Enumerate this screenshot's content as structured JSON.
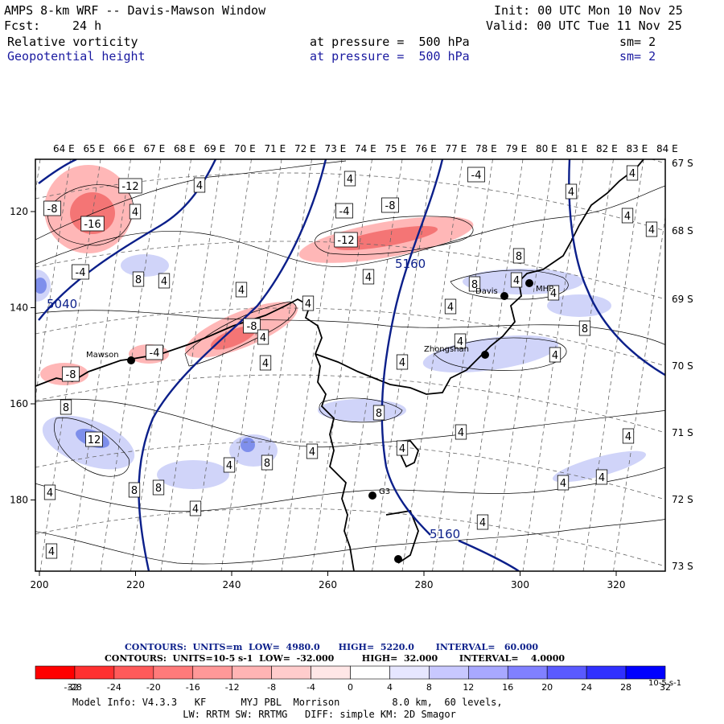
{
  "header": {
    "title": "AMPS 8-km WRF -- Davis-Mawson Window",
    "init": "Init: 00 UTC Mon 10 Nov 25",
    "fcst_label": "Fcst:",
    "fcst_value": "24 h",
    "valid": "Valid: 00 UTC Tue 11 Nov 25",
    "field1": {
      "name": "Relative vorticity",
      "pressure": "at pressure =  500 hPa",
      "sm": "sm= 2"
    },
    "field2": {
      "name": "Geopotential height",
      "pressure": "at pressure =  500 hPa",
      "sm": "sm= 2"
    }
  },
  "map": {
    "lon_labels": [
      "64 E",
      "65 E",
      "66 E",
      "67 E",
      "68 E",
      "69 E",
      "70 E",
      "71 E",
      "72 E",
      "73 E",
      "74 E",
      "75 E",
      "76 E",
      "77 E",
      "78 E",
      "79 E",
      "80 E",
      "81 E",
      "82 E",
      "83 E",
      "84 E"
    ],
    "lat_labels": [
      "67 S",
      "68 S",
      "69 S",
      "70 S",
      "71 S",
      "72 S",
      "73 S"
    ],
    "x_ticks": [
      "200",
      "220",
      "240",
      "260",
      "280",
      "300",
      "320"
    ],
    "y_ticks": [
      "120",
      "140",
      "160",
      "180"
    ],
    "stations": [
      {
        "name": "Mawson"
      },
      {
        "name": "Davis"
      },
      {
        "name": "Zhongshan"
      },
      {
        "name": "MHP"
      },
      {
        "name": "G3"
      }
    ],
    "height_labels": [
      "5040",
      "5160",
      "5160"
    ],
    "vort_labels": [
      "-12",
      "-8",
      "-16",
      "4",
      "-4",
      "8",
      "4",
      "4",
      "4",
      "-4",
      "-4",
      "-8",
      "-12",
      "4",
      "4",
      "4",
      "8",
      "8",
      "4",
      "4",
      "4",
      "4",
      "-8",
      "4",
      "-4",
      "-8",
      "4",
      "8",
      "12",
      "8",
      "4",
      "8",
      "4",
      "8",
      "8",
      "4",
      "4",
      "4",
      "4",
      "4",
      "8",
      "4",
      "4",
      "4",
      "4",
      "4",
      "4",
      "4",
      "4",
      "4",
      "4"
    ],
    "colors": {
      "height": "#0b1f8a",
      "coast": "#000000",
      "positive": "#6a7de8",
      "negative": "#f05a5a"
    }
  },
  "colorbar": {
    "ticks": [
      "-32",
      "-28",
      "-24",
      "-20",
      "-16",
      "-12",
      "-8",
      "-4",
      "0",
      "4",
      "8",
      "12",
      "16",
      "20",
      "24",
      "28",
      "32"
    ],
    "units": "10-5 s-1",
    "colors": [
      "#ff0000",
      "#ff3030",
      "#ff5a5a",
      "#ff7a7a",
      "#ff9898",
      "#ffb4b4",
      "#ffcccc",
      "#ffe6e6",
      "#ffffff",
      "#ffffff",
      "#e6e6ff",
      "#c8c8ff",
      "#a8a8ff",
      "#8080ff",
      "#5a5aff",
      "#3030ff",
      "#0000ff"
    ]
  },
  "contours_info": {
    "line1": "CONTOURS:  UNITS=m  LOW=  4980.0      HIGH=  5220.0       INTERVAL=   60.000",
    "line2": "CONTOURS:  UNITS=10-5 s-1  LOW=  -32.000         HIGH=  32.000       INTERVAL=    4.0000"
  },
  "footer": {
    "line1": "Model Info: V4.3.3   KF      MYJ PBL  Morrison         8.0 km,  60 levels,",
    "line2": "                   LW: RRTM SW: RRTMG   DIFF: simple KM: 2D Smagor"
  }
}
